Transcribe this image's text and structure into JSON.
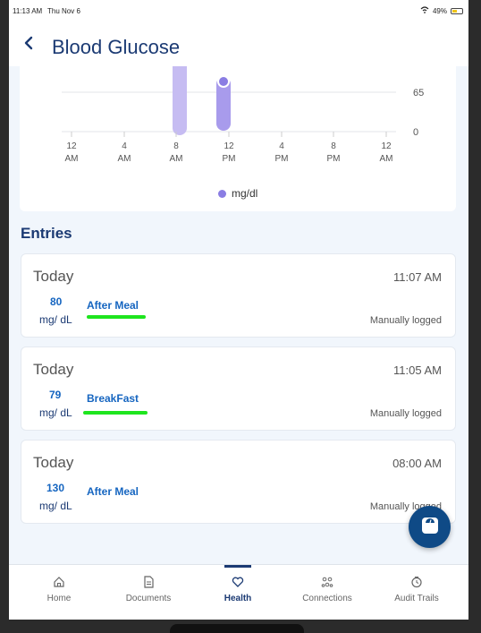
{
  "status_bar": {
    "time": "11:13 AM",
    "date": "Thu Nov 6",
    "battery": "49%"
  },
  "header": {
    "title": "Blood Glucose"
  },
  "chart_data": {
    "type": "bar",
    "x_ticks": [
      "12\nAM",
      "4\nAM",
      "8\nAM",
      "12\nPM",
      "4\nPM",
      "8\nPM",
      "12\nAM"
    ],
    "y_ticks": [
      "65",
      "0"
    ],
    "legend": "mg/dl",
    "colors": {
      "bar_light": "#c6bcf2",
      "bar_dark": "#a89bec",
      "point": "#8a7de3"
    }
  },
  "entries_title": "Entries",
  "entries": [
    {
      "day": "Today",
      "time": "11:07 AM",
      "value": "80",
      "unit": "mg/ dL",
      "tag": "After Meal",
      "source": "Manually logged"
    },
    {
      "day": "Today",
      "time": "11:05 AM",
      "value": "79",
      "unit": "mg/ dL",
      "tag": "BreakFast",
      "source": "Manually logged"
    },
    {
      "day": "Today",
      "time": "08:00 AM",
      "value": "130",
      "unit": "mg/ dL",
      "tag": "After Meal",
      "source": "Manually logged"
    }
  ],
  "nav": {
    "items": [
      {
        "label": "Home",
        "icon": "home-icon"
      },
      {
        "label": "Documents",
        "icon": "document-icon"
      },
      {
        "label": "Health",
        "icon": "heart-icon"
      },
      {
        "label": "Connections",
        "icon": "connections-icon"
      },
      {
        "label": "Audit Trails",
        "icon": "audit-icon"
      }
    ]
  },
  "accent_color": "#1b3a73",
  "highlight_color": "#1ee51e"
}
